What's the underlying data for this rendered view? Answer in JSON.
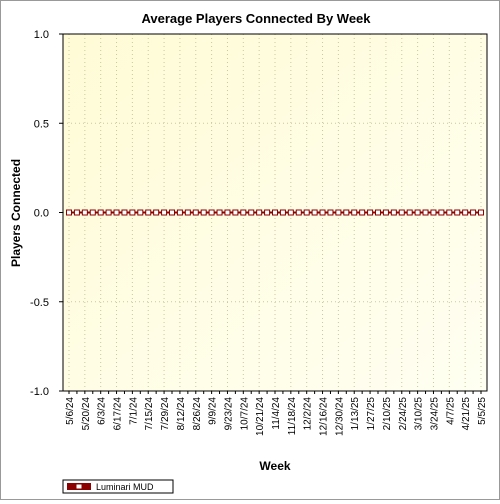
{
  "chart_data": {
    "type": "line",
    "title": "Average Players Connected By Week",
    "xlabel": "Week",
    "ylabel": "Players Connected",
    "ylim": [
      -1.0,
      1.0
    ],
    "yticks": [
      1.0,
      0.5,
      0.0,
      -0.5,
      -1.0
    ],
    "ytick_labels": [
      "1.0",
      "0.5",
      "0.0",
      "-0.5",
      "-1.0"
    ],
    "xtick_labels": [
      "5/6/24",
      "5/20/24",
      "6/3/24",
      "6/17/24",
      "7/1/24",
      "7/15/24",
      "7/29/24",
      "8/12/24",
      "8/26/24",
      "9/9/24",
      "9/23/24",
      "10/7/24",
      "10/21/24",
      "11/4/24",
      "11/18/24",
      "12/2/24",
      "12/16/24",
      "12/30/24",
      "1/13/25",
      "1/27/25",
      "2/10/25",
      "2/24/25",
      "3/10/25",
      "3/24/25",
      "4/7/25",
      "4/21/25",
      "5/5/25"
    ],
    "grid": true,
    "legend": "bottom-left",
    "colors": {
      "series": "#8b0000",
      "marker_fill": "#ffffff",
      "plot_bg_top": "#fffbd6",
      "plot_bg_bottom": "#fffff2"
    },
    "series": [
      {
        "name": "Luminari MUD",
        "x": [
          "5/6/24",
          "5/13/24",
          "5/20/24",
          "5/27/24",
          "6/3/24",
          "6/10/24",
          "6/17/24",
          "6/24/24",
          "7/1/24",
          "7/8/24",
          "7/15/24",
          "7/22/24",
          "7/29/24",
          "8/5/24",
          "8/12/24",
          "8/19/24",
          "8/26/24",
          "9/2/24",
          "9/9/24",
          "9/16/24",
          "9/23/24",
          "9/30/24",
          "10/7/24",
          "10/14/24",
          "10/21/24",
          "10/28/24",
          "11/4/24",
          "11/11/24",
          "11/18/24",
          "11/25/24",
          "12/2/24",
          "12/9/24",
          "12/16/24",
          "12/23/24",
          "12/30/24",
          "1/6/25",
          "1/13/25",
          "1/20/25",
          "1/27/25",
          "2/3/25",
          "2/10/25",
          "2/17/25",
          "2/24/25",
          "3/3/25",
          "3/10/25",
          "3/17/25",
          "3/24/25",
          "3/31/25",
          "4/7/25",
          "4/14/25",
          "4/21/25",
          "4/28/25",
          "5/5/25"
        ],
        "values": [
          0,
          0,
          0,
          0,
          0,
          0,
          0,
          0,
          0,
          0,
          0,
          0,
          0,
          0,
          0,
          0,
          0,
          0,
          0,
          0,
          0,
          0,
          0,
          0,
          0,
          0,
          0,
          0,
          0,
          0,
          0,
          0,
          0,
          0,
          0,
          0,
          0,
          0,
          0,
          0,
          0,
          0,
          0,
          0,
          0,
          0,
          0,
          0,
          0,
          0,
          0,
          0,
          0
        ]
      }
    ]
  }
}
